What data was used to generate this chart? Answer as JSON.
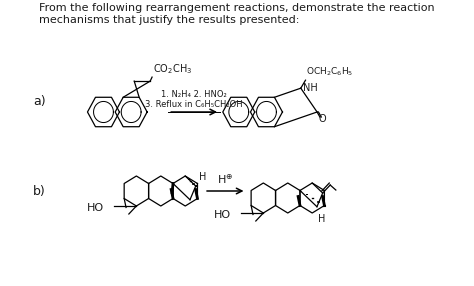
{
  "background_color": "#ffffff",
  "title_text": "From the following rearrangement reactions, demonstrate the reaction\nmechanisms that justify the results presented:",
  "title_fontsize": 8.0,
  "label_a": "a)",
  "label_b": "b)",
  "reaction_a_conditions": "1. N₂H₄ 2. HNO₂\n3. Reflux in C₆H₅CH₂OH",
  "text_color": "#1a1a1a"
}
